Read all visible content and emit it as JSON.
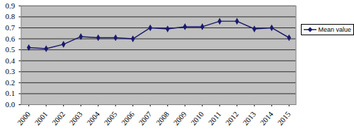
{
  "chart_data": {
    "type": "line",
    "categories": [
      "2000",
      "2001",
      "2002",
      "2003",
      "2004",
      "2005",
      "2006",
      "2007",
      "2008",
      "2009",
      "2010",
      "2011",
      "2012",
      "2013",
      "2014",
      "2015"
    ],
    "series": [
      {
        "name": "Mean value",
        "color": "#1a1a6e",
        "marker": "diamond",
        "line_style": "solid",
        "values": [
          0.52,
          0.51,
          0.55,
          0.62,
          0.61,
          0.61,
          0.6,
          0.7,
          0.69,
          0.71,
          0.71,
          0.76,
          0.76,
          0.69,
          0.7,
          0.61
        ]
      }
    ],
    "ylim": [
      0,
      0.9
    ],
    "yticks": [
      0,
      0.1,
      0.2,
      0.3,
      0.4,
      0.5,
      0.6,
      0.7,
      0.8,
      0.9
    ],
    "grid": true,
    "legend": "right"
  }
}
